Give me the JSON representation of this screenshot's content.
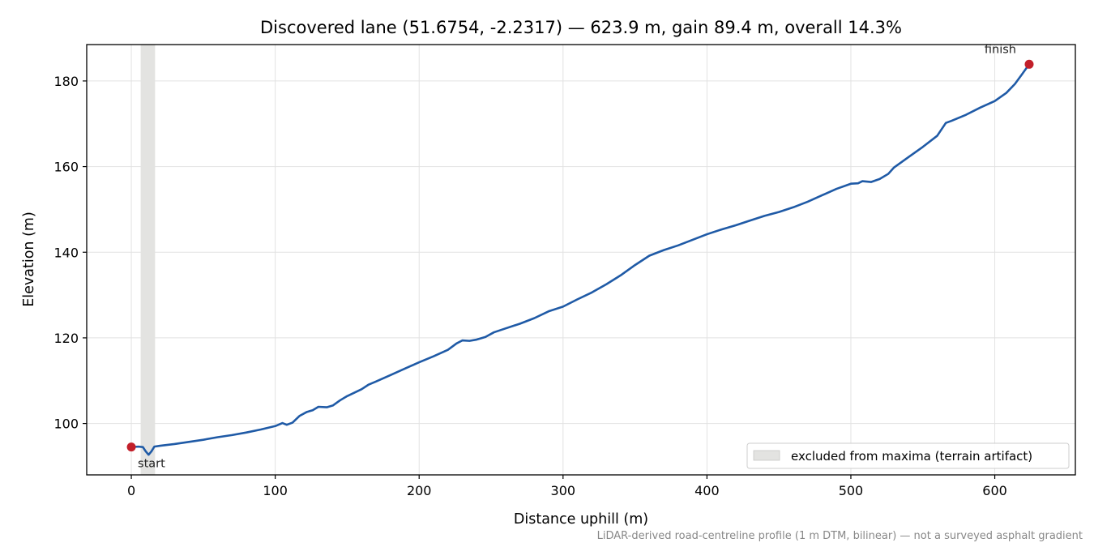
{
  "chart_data": {
    "type": "line",
    "title": "Discovered lane (51.6754, -2.2317) — 623.9 m, gain 89.4 m, overall 14.3%",
    "xlabel": "Distance uphill (m)",
    "ylabel": "Elevation (m)",
    "xlim": [
      -31,
      656
    ],
    "ylim": [
      88,
      188.5
    ],
    "xticks": [
      0,
      100,
      200,
      300,
      400,
      500,
      600
    ],
    "yticks": [
      100,
      120,
      140,
      160,
      180
    ],
    "grid": true,
    "series": [
      {
        "color": "#1f5aa6",
        "points": [
          [
            0,
            94.5
          ],
          [
            5,
            94.6
          ],
          [
            8,
            94.5
          ],
          [
            10,
            93.5
          ],
          [
            12,
            92.7
          ],
          [
            14,
            93.5
          ],
          [
            16,
            94.6
          ],
          [
            20,
            94.8
          ],
          [
            30,
            95.2
          ],
          [
            40,
            95.7
          ],
          [
            50,
            96.2
          ],
          [
            60,
            96.8
          ],
          [
            70,
            97.3
          ],
          [
            80,
            97.9
          ],
          [
            90,
            98.6
          ],
          [
            100,
            99.4
          ],
          [
            105,
            100.1
          ],
          [
            108,
            99.7
          ],
          [
            112,
            100.2
          ],
          [
            117,
            101.8
          ],
          [
            122,
            102.7
          ],
          [
            126,
            103.1
          ],
          [
            130,
            103.9
          ],
          [
            136,
            103.8
          ],
          [
            140,
            104.2
          ],
          [
            145,
            105.4
          ],
          [
            150,
            106.4
          ],
          [
            155,
            107.2
          ],
          [
            160,
            108.0
          ],
          [
            165,
            109.1
          ],
          [
            170,
            109.8
          ],
          [
            180,
            111.3
          ],
          [
            190,
            112.8
          ],
          [
            200,
            114.3
          ],
          [
            210,
            115.7
          ],
          [
            220,
            117.2
          ],
          [
            226,
            118.7
          ],
          [
            230,
            119.4
          ],
          [
            235,
            119.3
          ],
          [
            240,
            119.6
          ],
          [
            246,
            120.2
          ],
          [
            252,
            121.3
          ],
          [
            260,
            122.2
          ],
          [
            270,
            123.3
          ],
          [
            280,
            124.6
          ],
          [
            290,
            126.2
          ],
          [
            300,
            127.3
          ],
          [
            310,
            129.0
          ],
          [
            320,
            130.6
          ],
          [
            330,
            132.5
          ],
          [
            340,
            134.6
          ],
          [
            350,
            137.0
          ],
          [
            360,
            139.2
          ],
          [
            370,
            140.5
          ],
          [
            380,
            141.6
          ],
          [
            390,
            142.9
          ],
          [
            400,
            144.2
          ],
          [
            410,
            145.3
          ],
          [
            420,
            146.3
          ],
          [
            430,
            147.4
          ],
          [
            440,
            148.5
          ],
          [
            450,
            149.4
          ],
          [
            460,
            150.5
          ],
          [
            470,
            151.8
          ],
          [
            480,
            153.3
          ],
          [
            490,
            154.8
          ],
          [
            500,
            156.0
          ],
          [
            505,
            156.1
          ],
          [
            508,
            156.6
          ],
          [
            514,
            156.4
          ],
          [
            520,
            157.1
          ],
          [
            526,
            158.3
          ],
          [
            530,
            159.8
          ],
          [
            540,
            162.2
          ],
          [
            550,
            164.6
          ],
          [
            560,
            167.2
          ],
          [
            566,
            170.2
          ],
          [
            570,
            170.7
          ],
          [
            580,
            172.1
          ],
          [
            590,
            173.8
          ],
          [
            600,
            175.3
          ],
          [
            608,
            177.2
          ],
          [
            614,
            179.3
          ],
          [
            619,
            181.6
          ],
          [
            623.9,
            183.9
          ]
        ]
      }
    ],
    "markers": [
      {
        "x": 0,
        "y": 94.5,
        "label": "start",
        "color": "#c21f2a"
      },
      {
        "x": 623.9,
        "y": 183.9,
        "label": "finish",
        "color": "#c21f2a"
      }
    ],
    "excluded_band": {
      "x0": 6.5,
      "x1": 16.5,
      "color": "#e3e3e1"
    },
    "legend": {
      "placement": "lower-right",
      "entries": [
        {
          "label": "excluded from maxima (terrain artifact)",
          "color": "#e3e3e1"
        }
      ]
    },
    "footnote": "LiDAR-derived road-centreline profile (1 m DTM, bilinear) — not a surveyed asphalt gradient"
  }
}
